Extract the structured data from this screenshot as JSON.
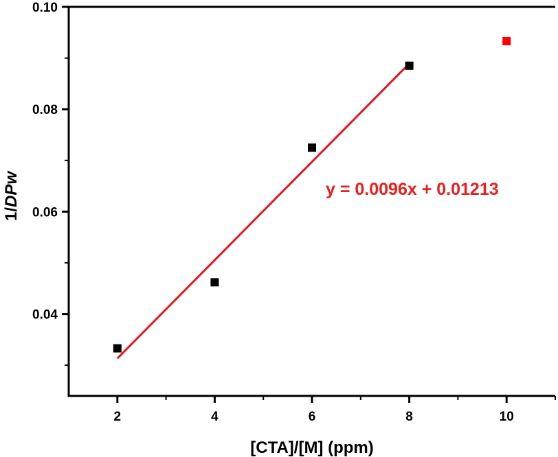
{
  "chart_data": {
    "type": "scatter",
    "x_axis": {
      "label": "[CTA]/[M] (ppm)",
      "range": [
        1,
        11
      ],
      "ticks": [
        2,
        4,
        6,
        8,
        10
      ],
      "tick_labels": [
        "2",
        "4",
        "6",
        "8",
        "10"
      ]
    },
    "y_axis": {
      "label_prefix": "1/",
      "label_italic": "DPw",
      "range": [
        0.024,
        0.1
      ],
      "ticks": [
        0.04,
        0.06,
        0.08,
        0.1
      ],
      "tick_labels": [
        "0.04",
        "0.06",
        "0.08",
        "0.10"
      ]
    },
    "series": [
      {
        "marker": "square",
        "color": "#000000",
        "points": [
          {
            "x": 2,
            "y": 0.0333
          },
          {
            "x": 4,
            "y": 0.0462
          },
          {
            "x": 6,
            "y": 0.0725
          },
          {
            "x": 8,
            "y": 0.0885
          }
        ]
      },
      {
        "marker": "square",
        "color": "#ff0000",
        "points": [
          {
            "x": 10,
            "y": 0.0933
          }
        ]
      }
    ],
    "fit_line": {
      "color": "#e8141c",
      "slope": 0.0096,
      "intercept": 0.01213,
      "x_range": [
        2,
        8
      ],
      "equation": "y = 0.0096x + 0.01213",
      "equation_color": "#ee1c1c"
    },
    "grid": false,
    "legend": "none"
  }
}
